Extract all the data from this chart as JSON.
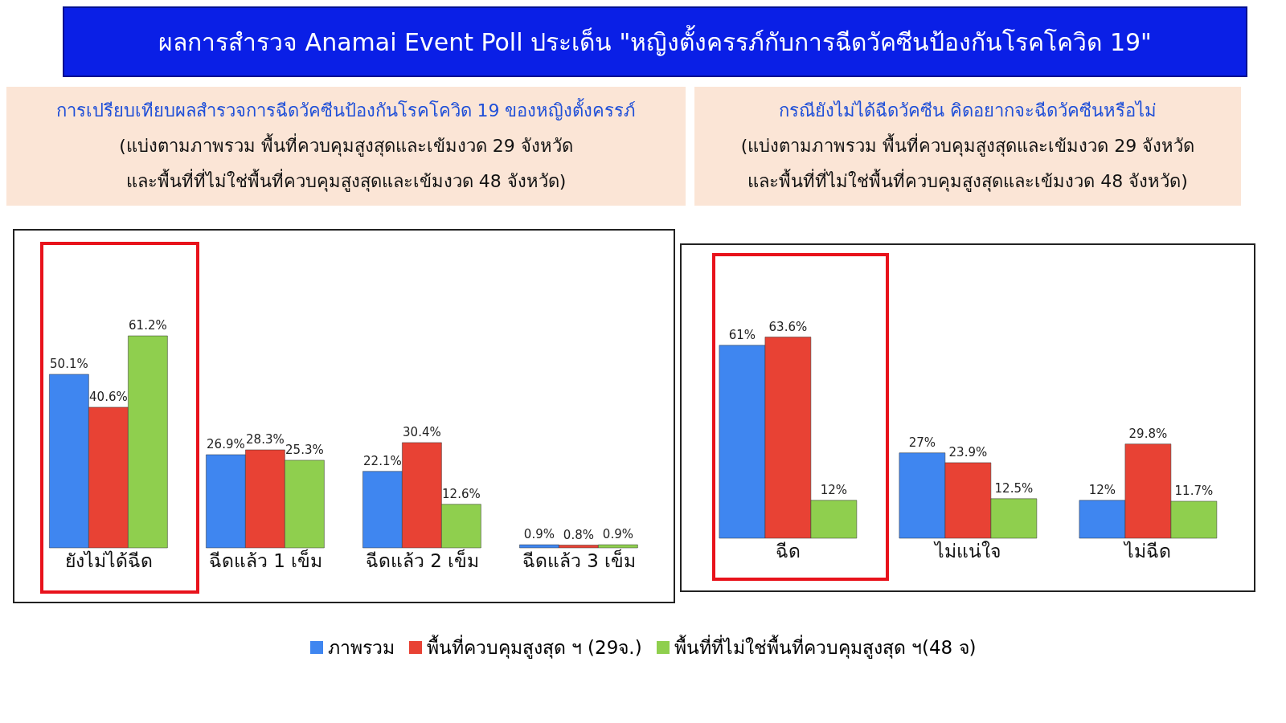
{
  "chart_data": [
    {
      "type": "bar",
      "title": "ผลการสำรวจ Anamai Event Poll ประเด็น \"หญิงตั้งครรภ์กับการฉีดวัคซีนป้องกันโรคโควิด 19\"",
      "subtitle": "การเปรียบเทียบผลสำรวจการฉีดวัคซีนป้องกันโรคโควิด 19 ของหญิงตั้งครรภ์\n(แบ่งตามภาพรวม พื้นที่ควบคุมสูงสุดและเข้มงวด 29 จังหวัด\nและพื้นที่ที่ไม่ใช่พื้นที่ควบคุมสูงสุดและเข้มงวด 48 จังหวัด)",
      "categories": [
        "ยังไม่ได้ฉีด",
        "ฉีดแล้ว 1 เข็ม",
        "ฉีดแล้ว 2 เข็ม",
        "ฉีดแล้ว 3 เข็ม"
      ],
      "legend": "bottom",
      "series": [
        {
          "name": "ภาพรวม",
          "color": "#3f86f0",
          "values": [
            50.1,
            26.9,
            22.1,
            0.9
          ],
          "value_labels": [
            "50.1%",
            "26.9%",
            "22.1%",
            "0.9%"
          ]
        },
        {
          "name": "พื้นที่ควบคุมสูงสุด ฯ (29จ.)",
          "color": "#e84234",
          "values": [
            40.6,
            28.3,
            30.4,
            0.8
          ],
          "value_labels": [
            "40.6%",
            "28.3%",
            "30.4%",
            "0.8%"
          ]
        },
        {
          "name": "พื้นที่ที่ไม่ใช่พื้นที่ควบคุมสูงสุด ฯ(48 จ)",
          "color": "#8fcf4e",
          "values": [
            61.2,
            25.3,
            12.6,
            0.9
          ],
          "value_labels": [
            "61.2%",
            "25.3%",
            "12.6%",
            "0.9%"
          ]
        }
      ]
    },
    {
      "type": "bar",
      "title": "กรณียังไม่ได้ฉีดวัคซีน คิดอยากจะฉีดวัคซีนหรือไม่\n(แบ่งตามภาพรวม พื้นที่ควบคุมสูงสุดและเข้มงวด 29 จังหวัด\nและพื้นที่ที่ไม่ใช่พื้นที่ควบคุมสูงสุดและเข้มงวด 48 จังหวัด)",
      "categories": [
        "ฉีด",
        "ไม่แน่ใจ",
        "ไม่ฉีด"
      ],
      "series": [
        {
          "color": "#3f86f0",
          "values": [
            61,
            27,
            12
          ],
          "value_labels": [
            "61%",
            "27%",
            "12%"
          ]
        },
        {
          "color": "#e84234",
          "values": [
            63.6,
            23.9,
            29.8
          ],
          "value_labels": [
            "63.6%",
            "23.9%",
            "29.8%"
          ]
        },
        {
          "color": "#8fcf4e",
          "values": [
            12,
            12.5,
            11.7
          ],
          "value_labels": [
            "12%",
            "12.5%",
            "11.7%"
          ]
        }
      ]
    }
  ]
}
